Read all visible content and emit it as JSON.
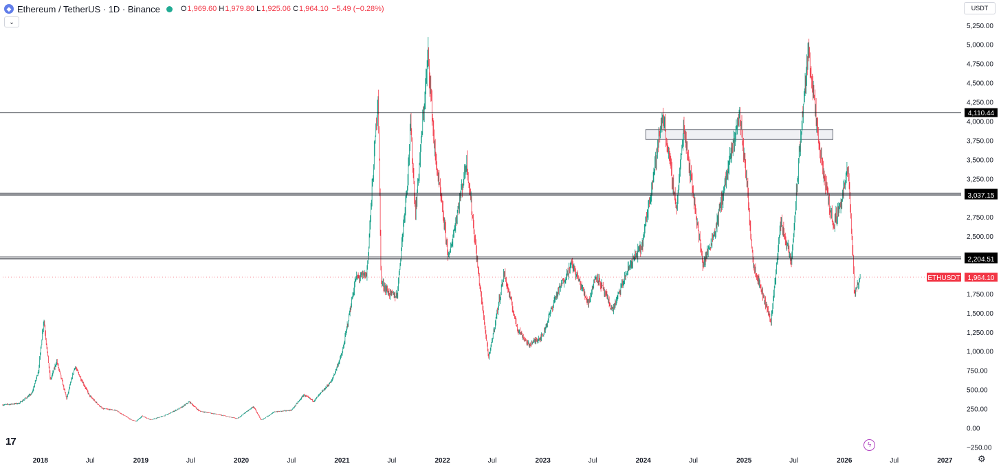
{
  "header": {
    "title": "Ethereum / TetherUS · 1D · Binance",
    "ohlc": [
      {
        "key": "O",
        "value": "1,969.60"
      },
      {
        "key": "H",
        "value": "1,979.80"
      },
      {
        "key": "L",
        "value": "1,925.06"
      },
      {
        "key": "C",
        "value": "1,964.10"
      }
    ],
    "change": "−5.49 (−0.28%)"
  },
  "currency_button": "USDT",
  "colors": {
    "up": "#089981",
    "down": "#f23645",
    "line": "#131722",
    "label_bg": "#000000",
    "price_tag": "#f23645",
    "zone_fill": "#e8eaef",
    "zone_stroke": "#6a6d78"
  },
  "icons": {
    "logo": "ethereum-logo-icon",
    "collapse": "chevron-down-icon",
    "settings": "gear-icon",
    "alert": "lightning-icon",
    "brand": "tradingview-logo-icon"
  },
  "chart_data": {
    "type": "candlestick",
    "symbol_tag": "ETHUSDT",
    "last_price": 1964.1,
    "last_price_label": "1,964.10",
    "ylim": [
      -300,
      5400
    ],
    "y_ticks": [
      -250,
      0,
      250,
      500,
      750,
      1000,
      1250,
      1500,
      1750,
      2000,
      2250,
      2500,
      2750,
      3000,
      3250,
      3500,
      3750,
      4000,
      4250,
      4500,
      4750,
      5000,
      5250
    ],
    "y_tick_labels": [
      "−250.00",
      "0.00",
      "250.00",
      "500.00",
      "750.00",
      "1,000.00",
      "1,250.00",
      "1,500.00",
      "1,750.00",
      "",
      "",
      "2,500.00",
      "2,750.00",
      "",
      "3,250.00",
      "3,500.00",
      "3,750.00",
      "4,000.00",
      "4,250.00",
      "4,500.00",
      "4,750.00",
      "5,000.00",
      "5,250.00"
    ],
    "xlim": [
      "2017-08-17",
      "2027-03-01"
    ],
    "x_ticks": [
      {
        "date": "2018-01-01",
        "label": "2018",
        "bold": true
      },
      {
        "date": "2018-07-01",
        "label": "Jul",
        "bold": false
      },
      {
        "date": "2019-01-01",
        "label": "2019",
        "bold": true
      },
      {
        "date": "2019-07-01",
        "label": "Jul",
        "bold": false
      },
      {
        "date": "2020-01-01",
        "label": "2020",
        "bold": true
      },
      {
        "date": "2020-07-01",
        "label": "Jul",
        "bold": false
      },
      {
        "date": "2021-01-01",
        "label": "2021",
        "bold": true
      },
      {
        "date": "2021-07-01",
        "label": "Jul",
        "bold": false
      },
      {
        "date": "2022-01-01",
        "label": "2022",
        "bold": true
      },
      {
        "date": "2022-07-01",
        "label": "Jul",
        "bold": false
      },
      {
        "date": "2023-01-01",
        "label": "2023",
        "bold": true
      },
      {
        "date": "2023-07-01",
        "label": "Jul",
        "bold": false
      },
      {
        "date": "2024-01-01",
        "label": "2024",
        "bold": true
      },
      {
        "date": "2024-07-01",
        "label": "Jul",
        "bold": false
      },
      {
        "date": "2025-01-01",
        "label": "2025",
        "bold": true
      },
      {
        "date": "2025-07-01",
        "label": "Jul",
        "bold": false
      },
      {
        "date": "2026-01-01",
        "label": "2026",
        "bold": true
      },
      {
        "date": "2026-07-01",
        "label": "Jul",
        "bold": false
      },
      {
        "date": "2027-01-01",
        "label": "2027",
        "bold": true
      }
    ],
    "horizontal_lines": [
      {
        "price": 4110.44,
        "label": "4,110.44"
      },
      {
        "price": 3061.22,
        "label": "3,061.22"
      },
      {
        "price": 3037.15,
        "label": "3,037.15"
      },
      {
        "price": 2228.58,
        "label": "2,228.58"
      },
      {
        "price": 2204.51,
        "label": "2,204.51"
      }
    ],
    "zone": {
      "start": "2024-01-10",
      "end": "2025-11-20",
      "top": 3890,
      "bottom": 3760
    },
    "price_path": [
      [
        "2017-08-17",
        300
      ],
      [
        "2017-10-15",
        320
      ],
      [
        "2017-12-01",
        450
      ],
      [
        "2017-12-25",
        750
      ],
      [
        "2018-01-13",
        1420
      ],
      [
        "2018-02-06",
        620
      ],
      [
        "2018-03-01",
        870
      ],
      [
        "2018-04-06",
        380
      ],
      [
        "2018-05-06",
        800
      ],
      [
        "2018-06-28",
        420
      ],
      [
        "2018-08-14",
        250
      ],
      [
        "2018-10-01",
        230
      ],
      [
        "2018-11-25",
        110
      ],
      [
        "2018-12-15",
        84
      ],
      [
        "2019-01-05",
        155
      ],
      [
        "2019-02-08",
        105
      ],
      [
        "2019-04-01",
        165
      ],
      [
        "2019-05-30",
        270
      ],
      [
        "2019-06-26",
        340
      ],
      [
        "2019-08-01",
        220
      ],
      [
        "2019-10-01",
        180
      ],
      [
        "2019-12-17",
        120
      ],
      [
        "2020-02-14",
        280
      ],
      [
        "2020-03-13",
        100
      ],
      [
        "2020-05-01",
        210
      ],
      [
        "2020-07-01",
        230
      ],
      [
        "2020-08-15",
        430
      ],
      [
        "2020-09-20",
        350
      ],
      [
        "2020-11-24",
        610
      ],
      [
        "2021-01-02",
        980
      ],
      [
        "2021-02-20",
        1950
      ],
      [
        "2021-04-01",
        2000
      ],
      [
        "2021-05-12",
        4360
      ],
      [
        "2021-05-23",
        1900
      ],
      [
        "2021-06-22",
        1750
      ],
      [
        "2021-07-20",
        1720
      ],
      [
        "2021-08-28",
        3300
      ],
      [
        "2021-09-07",
        3950
      ],
      [
        "2021-09-25",
        2800
      ],
      [
        "2021-11-10",
        4870
      ],
      [
        "2021-12-04",
        3600
      ],
      [
        "2022-01-24",
        2200
      ],
      [
        "2022-03-30",
        3480
      ],
      [
        "2022-05-12",
        2000
      ],
      [
        "2022-06-18",
        900
      ],
      [
        "2022-08-13",
        2020
      ],
      [
        "2022-09-30",
        1300
      ],
      [
        "2022-11-10",
        1080
      ],
      [
        "2022-12-31",
        1200
      ],
      [
        "2023-02-15",
        1700
      ],
      [
        "2023-04-16",
        2140
      ],
      [
        "2023-06-15",
        1630
      ],
      [
        "2023-07-14",
        2000
      ],
      [
        "2023-09-11",
        1530
      ],
      [
        "2023-11-10",
        2100
      ],
      [
        "2023-12-28",
        2380
      ],
      [
        "2024-03-12",
        4090
      ],
      [
        "2024-05-01",
        2850
      ],
      [
        "2024-05-27",
        3950
      ],
      [
        "2024-08-05",
        2120
      ],
      [
        "2024-09-20",
        2600
      ],
      [
        "2024-12-16",
        4100
      ],
      [
        "2025-01-10",
        3250
      ],
      [
        "2025-02-03",
        2150
      ],
      [
        "2025-04-09",
        1390
      ],
      [
        "2025-05-15",
        2700
      ],
      [
        "2025-06-22",
        2150
      ],
      [
        "2025-07-28",
        3900
      ],
      [
        "2025-08-24",
        4950
      ],
      [
        "2025-09-25",
        3830
      ],
      [
        "2025-10-10",
        3450
      ],
      [
        "2025-11-21",
        2650
      ],
      [
        "2025-12-20",
        2950
      ],
      [
        "2026-01-14",
        3380
      ],
      [
        "2026-01-31",
        2300
      ],
      [
        "2026-02-06",
        1750
      ],
      [
        "2026-02-28",
        1964
      ]
    ]
  }
}
